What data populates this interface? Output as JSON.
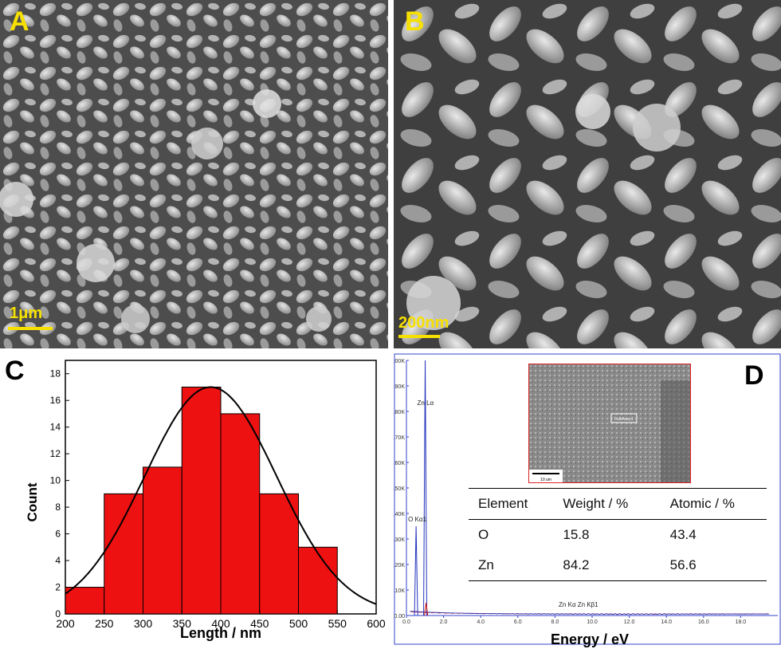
{
  "panels": {
    "a": {
      "label": "A",
      "scale": "1μm"
    },
    "b": {
      "label": "B",
      "scale": "200nm"
    },
    "c": {
      "label": "C"
    },
    "d": {
      "label": "D"
    }
  },
  "colors": {
    "bar": "#ee1111",
    "curve": "#000000",
    "spectrum_blue": "#2233bb",
    "spectrum_red": "#cc1111",
    "scale_bar": "#f6e000"
  },
  "chart_data": [
    {
      "type": "bar",
      "panel": "C",
      "xlabel": "Length / nm",
      "ylabel": "Count",
      "bins": [
        [
          200,
          250
        ],
        [
          250,
          300
        ],
        [
          300,
          350
        ],
        [
          350,
          400
        ],
        [
          400,
          450
        ],
        [
          450,
          500
        ],
        [
          500,
          550
        ]
      ],
      "values": [
        2,
        9,
        11,
        17,
        15,
        9,
        5
      ],
      "fit_curve": {
        "type": "gaussian",
        "peak_x": 387,
        "peak_y": 17,
        "sigma": 85
      },
      "xlim": [
        200,
        600
      ],
      "ylim": [
        0,
        19
      ],
      "xticks": [
        "200",
        "250",
        "300",
        "350",
        "400",
        "450",
        "500",
        "550",
        "600"
      ],
      "yticks": [
        "0",
        "2",
        "4",
        "6",
        "8",
        "10",
        "12",
        "14",
        "16",
        "18"
      ]
    },
    {
      "type": "line",
      "panel": "D",
      "xlabel": "Energy / eV",
      "xlim": [
        0,
        20
      ],
      "ylim": [
        0,
        1.0
      ],
      "xticks": [
        "0.0",
        "2.0",
        "4.0",
        "6.0",
        "8.0",
        "10.0",
        "12.0",
        "14.0",
        "16.0",
        "18.0"
      ],
      "yticks": [
        "0.00",
        "0.10K",
        "0.20K",
        "0.30K",
        "0.40K",
        "0.50K",
        "0.60K",
        "0.70K",
        "0.80K",
        "0.90K",
        "1.00K"
      ],
      "peaks": [
        {
          "label": "Zn Lα",
          "x": 1.01,
          "y": 1.0
        },
        {
          "label": "O Kα1",
          "x": 0.52,
          "y": 0.35
        }
      ],
      "peak_labels_extra": "Zn Kα Zn Kβ1",
      "inset_label": "Full Area 1",
      "inset_scale": "10 um",
      "table": {
        "headers": [
          "Element",
          "Weight / %",
          "Atomic / %"
        ],
        "rows": [
          [
            "O",
            "15.8",
            "43.4"
          ],
          [
            "Zn",
            "84.2",
            "56.6"
          ]
        ]
      }
    }
  ]
}
